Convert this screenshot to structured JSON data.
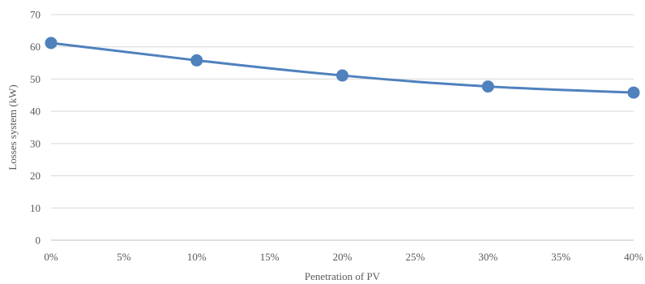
{
  "chart_data": {
    "type": "line",
    "title": "",
    "xlabel": "Penetration of PV",
    "ylabel": "Losses system (kW)",
    "xlim": [
      0,
      40
    ],
    "ylim": [
      0,
      70
    ],
    "x_ticks": [
      "0%",
      "5%",
      "10%",
      "15%",
      "20%",
      "25%",
      "30%",
      "35%",
      "40%"
    ],
    "y_ticks": [
      "0",
      "10",
      "20",
      "30",
      "40",
      "50",
      "60",
      "70"
    ],
    "grid": "horizontal",
    "legend": "none",
    "series": [
      {
        "color": "#4f81bd",
        "x": [
          0,
          10,
          20,
          30,
          40
        ],
        "values": [
          61.2,
          55.8,
          51.1,
          47.7,
          45.8
        ]
      }
    ]
  }
}
